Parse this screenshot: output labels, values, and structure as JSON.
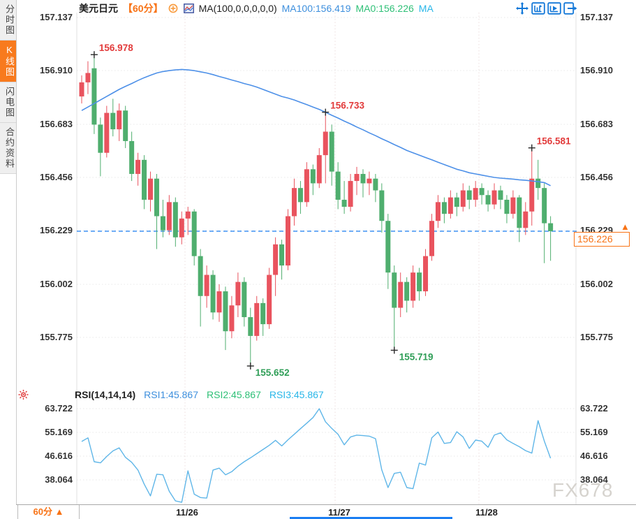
{
  "window": {
    "watermark": "FX678"
  },
  "sidebar": {
    "items": [
      {
        "id": "time-chart",
        "label": "分时图",
        "active": false
      },
      {
        "id": "kline-chart",
        "label": "K线图",
        "active": true
      },
      {
        "id": "flash-chart",
        "label": "闪电图",
        "active": false
      },
      {
        "id": "contract-info",
        "label": "合约资料",
        "active": false
      }
    ]
  },
  "header": {
    "symbol": "美元日元",
    "period": "【60分】",
    "ma_formula": "MA(100,0,0,0,0,0)",
    "ma100_label": "MA100:156.419",
    "ma0_label": "MA0:156.226",
    "ma_extra_label": "MA"
  },
  "price_tag": {
    "tick": "156.229",
    "current": "156.226"
  },
  "rsi_header": {
    "formula": "RSI(14,14,14)",
    "rsi1_label": "RSI1:45.867",
    "rsi2_label": "RSI2:45.867",
    "rsi3_label": "RSI3:45.867"
  },
  "bottom": {
    "period_label": "60分 ▲"
  },
  "colors": {
    "up": "#e9535e",
    "down": "#4fae6e",
    "ma_line": "#4d90e8",
    "rsi_line": "#5fb6e8",
    "price_line": "#1b7ef2",
    "annotation_red": "#e23b3b",
    "annotation_green": "#2f9e57",
    "icon_blue": "#1478d8",
    "accent_orange": "#f87316",
    "grid_h": "#e8e8e8",
    "grid_v": "#ecdede",
    "border": "#e0e0e0"
  },
  "chart_data": {
    "type": "candlestick",
    "symbol": "美元日元 (USD/JPY) 60分",
    "price_axis_labels": [
      "157.137",
      "156.910",
      "156.683",
      "156.456",
      "156.229",
      "156.002",
      "155.775"
    ],
    "price_axis_values": [
      157.137,
      156.91,
      156.683,
      156.456,
      156.229,
      156.002,
      155.775
    ],
    "dates": [
      "11/26",
      "11/27",
      "11/28"
    ],
    "day_start_indices": [
      17,
      41,
      64
    ],
    "current_price": 156.226,
    "ma100_current": 156.419,
    "annotations": [
      {
        "text": "156.978",
        "index": 2,
        "price": 156.978,
        "kind": "high"
      },
      {
        "text": "156.733",
        "index": 39,
        "price": 156.733,
        "kind": "high"
      },
      {
        "text": "156.581",
        "index": 72,
        "price": 156.581,
        "kind": "high"
      },
      {
        "text": "155.652",
        "index": 27,
        "price": 155.652,
        "kind": "low"
      },
      {
        "text": "155.719",
        "index": 50,
        "price": 155.719,
        "kind": "low"
      }
    ],
    "candles_ohlc": [
      [
        156.8,
        156.89,
        156.77,
        156.86
      ],
      [
        156.86,
        156.95,
        156.81,
        156.9
      ],
      [
        156.92,
        156.978,
        156.64,
        156.68
      ],
      [
        156.68,
        156.71,
        156.46,
        156.56
      ],
      [
        156.56,
        156.76,
        156.54,
        156.73
      ],
      [
        156.73,
        156.79,
        156.63,
        156.66
      ],
      [
        156.66,
        156.77,
        156.61,
        156.74
      ],
      [
        156.74,
        156.76,
        156.58,
        156.61
      ],
      [
        156.61,
        156.65,
        156.44,
        156.47
      ],
      [
        156.47,
        156.56,
        156.42,
        156.53
      ],
      [
        156.53,
        156.55,
        156.32,
        156.36
      ],
      [
        156.36,
        156.48,
        156.31,
        156.45
      ],
      [
        156.45,
        156.47,
        156.15,
        156.29
      ],
      [
        156.29,
        156.36,
        156.2,
        156.23
      ],
      [
        156.23,
        156.38,
        156.21,
        156.35
      ],
      [
        156.35,
        156.37,
        156.16,
        156.2
      ],
      [
        156.2,
        156.31,
        156.17,
        156.28
      ],
      [
        156.28,
        156.33,
        156.21,
        156.31
      ],
      [
        156.31,
        156.32,
        156.08,
        156.12
      ],
      [
        156.12,
        156.15,
        155.82,
        155.95
      ],
      [
        155.95,
        156.08,
        155.9,
        156.04
      ],
      [
        156.04,
        156.06,
        155.85,
        155.88
      ],
      [
        155.88,
        156.0,
        155.84,
        155.97
      ],
      [
        155.97,
        155.99,
        155.72,
        155.8
      ],
      [
        155.8,
        155.95,
        155.77,
        155.91
      ],
      [
        155.91,
        156.05,
        155.86,
        156.01
      ],
      [
        156.01,
        156.03,
        155.82,
        155.86
      ],
      [
        155.86,
        155.9,
        155.652,
        155.78
      ],
      [
        155.78,
        155.95,
        155.76,
        155.92
      ],
      [
        155.92,
        155.94,
        155.78,
        155.83
      ],
      [
        155.83,
        156.07,
        155.81,
        156.04
      ],
      [
        156.04,
        156.2,
        155.95,
        156.17
      ],
      [
        156.17,
        156.19,
        156.02,
        156.08
      ],
      [
        156.08,
        156.32,
        156.06,
        156.29
      ],
      [
        156.29,
        156.45,
        156.25,
        156.41
      ],
      [
        156.41,
        156.44,
        156.3,
        156.35
      ],
      [
        156.35,
        156.52,
        156.33,
        156.49
      ],
      [
        156.49,
        156.51,
        156.38,
        156.43
      ],
      [
        156.43,
        156.58,
        156.41,
        156.55
      ],
      [
        156.55,
        156.733,
        156.43,
        156.65
      ],
      [
        156.65,
        156.68,
        156.42,
        156.48
      ],
      [
        156.48,
        156.52,
        156.32,
        156.36
      ],
      [
        156.36,
        156.44,
        156.3,
        156.33
      ],
      [
        156.33,
        156.47,
        156.31,
        156.44
      ],
      [
        156.44,
        156.5,
        156.38,
        156.47
      ],
      [
        156.47,
        156.49,
        156.37,
        156.43
      ],
      [
        156.43,
        156.48,
        156.38,
        156.45
      ],
      [
        156.45,
        156.47,
        156.35,
        156.4
      ],
      [
        156.4,
        156.43,
        156.22,
        156.27
      ],
      [
        156.27,
        156.3,
        155.98,
        156.05
      ],
      [
        156.05,
        156.08,
        155.719,
        155.9
      ],
      [
        155.9,
        156.05,
        155.86,
        156.01
      ],
      [
        156.01,
        156.03,
        155.88,
        155.93
      ],
      [
        155.93,
        156.08,
        155.9,
        156.05
      ],
      [
        156.05,
        156.07,
        155.93,
        155.97
      ],
      [
        155.97,
        156.15,
        155.95,
        156.12
      ],
      [
        156.12,
        156.3,
        156.1,
        156.27
      ],
      [
        156.27,
        156.38,
        156.24,
        156.35
      ],
      [
        156.35,
        156.37,
        156.26,
        156.3
      ],
      [
        156.3,
        156.4,
        156.28,
        156.37
      ],
      [
        156.37,
        156.39,
        156.29,
        156.33
      ],
      [
        156.33,
        156.43,
        156.31,
        156.4
      ],
      [
        156.4,
        156.42,
        156.32,
        156.36
      ],
      [
        156.36,
        156.44,
        156.33,
        156.41
      ],
      [
        156.41,
        156.43,
        156.34,
        156.38
      ],
      [
        156.38,
        156.4,
        156.31,
        156.34
      ],
      [
        156.34,
        156.43,
        156.32,
        156.4
      ],
      [
        156.4,
        156.42,
        156.32,
        156.36
      ],
      [
        156.36,
        156.38,
        156.26,
        156.3
      ],
      [
        156.3,
        156.4,
        156.28,
        156.37
      ],
      [
        156.37,
        156.38,
        156.18,
        156.24
      ],
      [
        156.24,
        156.35,
        156.21,
        156.31
      ],
      [
        156.31,
        156.581,
        156.25,
        156.45
      ],
      [
        156.45,
        156.53,
        156.36,
        156.41
      ],
      [
        156.41,
        156.43,
        156.09,
        156.26
      ],
      [
        156.26,
        156.29,
        156.1,
        156.226
      ]
    ],
    "ma100": [
      156.74,
      156.755,
      156.77,
      156.785,
      156.8,
      156.815,
      156.83,
      156.843,
      156.855,
      156.868,
      156.88,
      156.89,
      156.9,
      156.906,
      156.91,
      156.913,
      156.915,
      156.913,
      156.91,
      156.905,
      156.9,
      156.893,
      156.885,
      156.878,
      156.87,
      156.863,
      156.855,
      156.848,
      156.84,
      156.83,
      156.82,
      156.81,
      156.8,
      156.793,
      156.785,
      156.775,
      156.765,
      156.755,
      156.745,
      156.733,
      156.72,
      156.708,
      156.695,
      156.683,
      156.67,
      156.658,
      156.645,
      156.633,
      156.62,
      156.608,
      156.595,
      156.583,
      156.57,
      156.56,
      156.55,
      156.54,
      156.53,
      156.52,
      156.51,
      156.5,
      156.49,
      156.483,
      156.475,
      156.47,
      156.465,
      156.46,
      156.455,
      156.452,
      156.45,
      156.448,
      156.445,
      156.443,
      156.44,
      156.437,
      156.433,
      156.42
    ],
    "rsi": {
      "axis_labels": [
        "63.722",
        "55.169",
        "46.616",
        "38.064"
      ],
      "axis_values": [
        63.722,
        55.169,
        46.616,
        38.064
      ],
      "series": [
        51.9,
        53.2,
        44.6,
        44.2,
        46.5,
        48.5,
        49.6,
        46.2,
        44.4,
        41.6,
        36.5,
        32.3,
        40.1,
        39.9,
        34.0,
        30.5,
        30.0,
        41.3,
        32.9,
        31.7,
        31.5,
        41.6,
        42.3,
        39.9,
        41.0,
        43.0,
        44.6,
        46.0,
        47.5,
        49.0,
        50.5,
        52.3,
        50.3,
        52.5,
        54.5,
        56.5,
        58.5,
        60.5,
        63.7,
        59.0,
        56.6,
        54.5,
        50.7,
        53.5,
        54.2,
        54.0,
        53.8,
        52.9,
        41.7,
        35.3,
        40.4,
        40.8,
        35.3,
        34.9,
        44.1,
        43.4,
        53.2,
        55.3,
        51.2,
        51.5,
        55.4,
        53.5,
        49.4,
        52.4,
        52.0,
        49.8,
        54.2,
        55.0,
        52.5,
        51.2,
        50.0,
        48.6,
        47.7,
        59.4,
        52.0,
        45.867
      ]
    }
  }
}
